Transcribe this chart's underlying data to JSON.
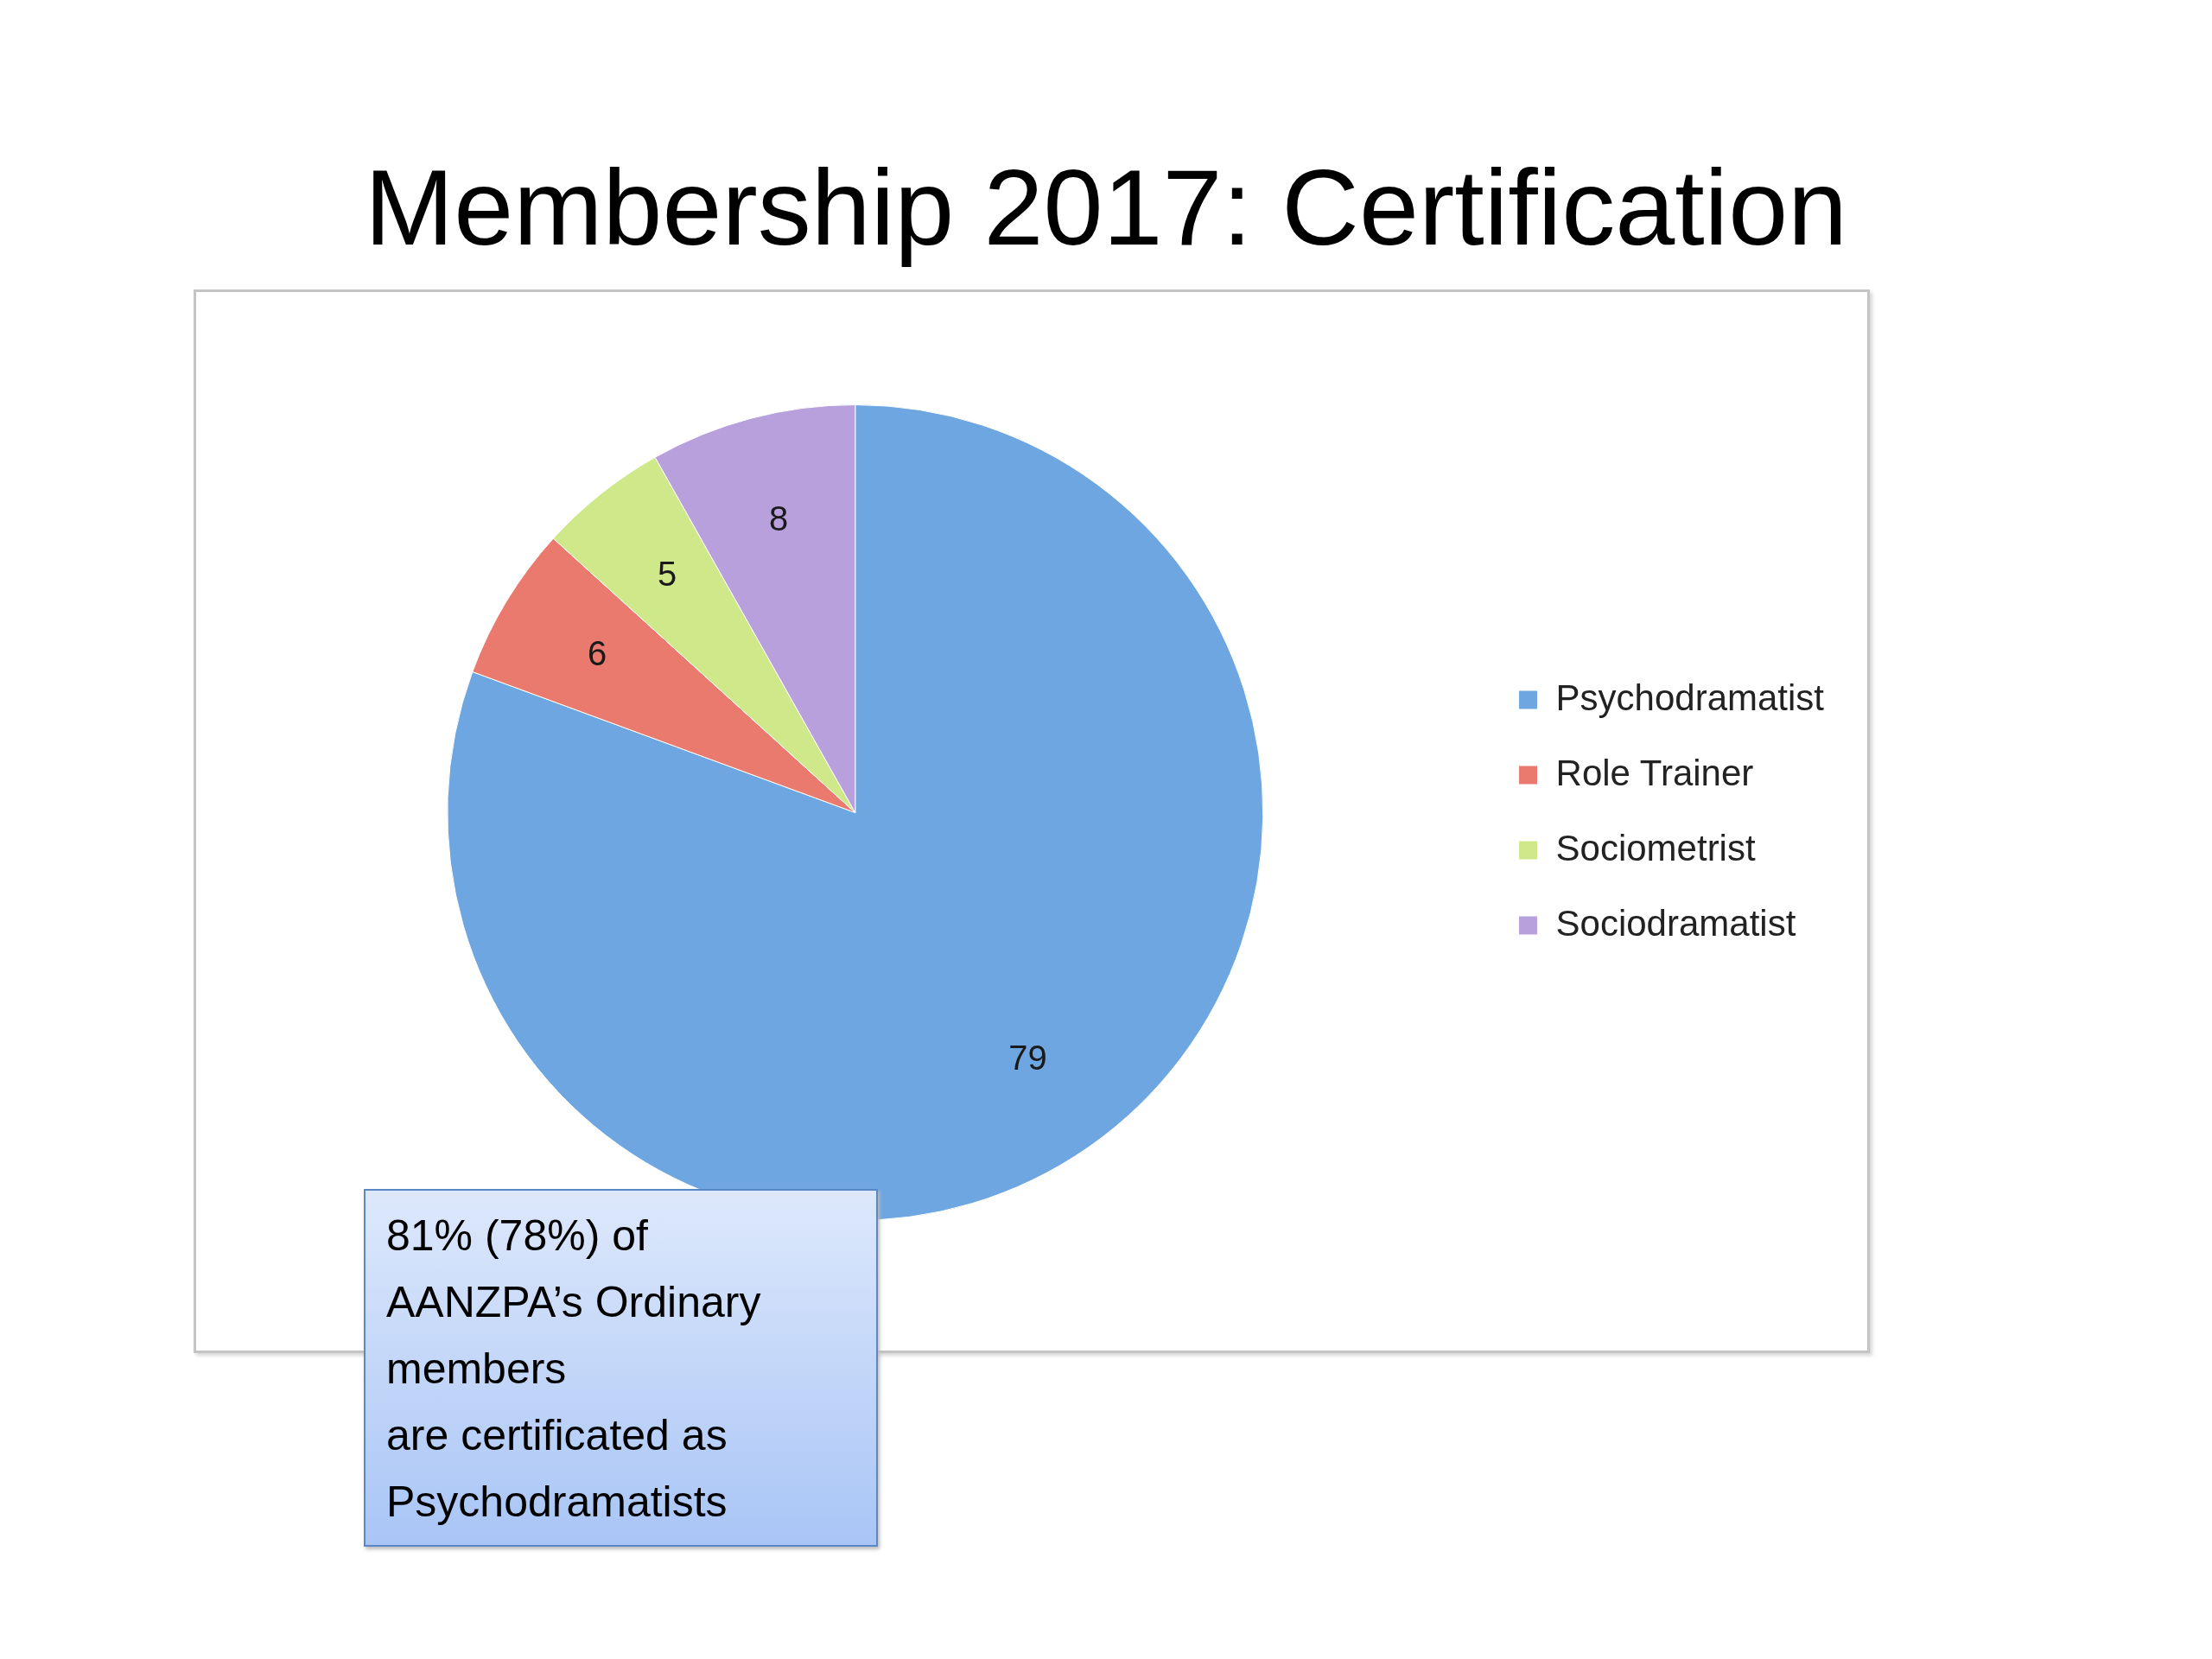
{
  "chart_data": {
    "type": "pie",
    "title": "Membership 2017: Certification",
    "categories": [
      "Psychodramatist",
      "Role Trainer",
      "Sociometrist",
      "Sociodramatist"
    ],
    "values": [
      79,
      6,
      5,
      8
    ],
    "colors": [
      "#6ea6e2",
      "#ea7a6e",
      "#cfe98a",
      "#b7a0dc"
    ],
    "data_labels": true,
    "legend": "right",
    "annotations": [
      "81% (78%) of\nAANZPA’s Ordinary\nmembers\nare certificated as\nPsychodramatists"
    ]
  }
}
